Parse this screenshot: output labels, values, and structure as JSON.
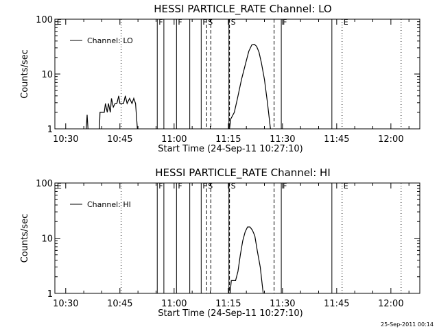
{
  "footer": {
    "stamp": "25-Sep-2011 00:14"
  },
  "chart_data": [
    {
      "type": "line",
      "title": "HESSI PARTICLE_RATE Channel: LO",
      "xlabel": "Start Time (24-Sep-11 10:27:10)",
      "ylabel": "Counts/sec",
      "yscale": "log",
      "ylim": [
        1,
        100
      ],
      "xlim": [
        "10:27",
        "12:08"
      ],
      "x_ticks": [
        "10:30",
        "10:45",
        "11:00",
        "11:15",
        "11:30",
        "11:45",
        "12:00"
      ],
      "y_ticks": [
        "1",
        "10",
        "100"
      ],
      "legend": {
        "label": "Channel: LO",
        "placement": "top-left"
      },
      "series": [
        {
          "name": "Channel: LO",
          "segments": [
            [
              [
                "10:35:40",
                1.0
              ],
              [
                "10:35:55",
                1.8
              ],
              [
                "10:36:10",
                1.0
              ]
            ],
            [
              [
                "10:39:20",
                1.0
              ],
              [
                "10:39:30",
                2.0
              ],
              [
                "10:40:40",
                2.0
              ],
              [
                "10:41:00",
                2.9
              ],
              [
                "10:41:30",
                2.0
              ],
              [
                "10:41:50",
                2.9
              ],
              [
                "10:42:20",
                2.0
              ],
              [
                "10:42:40",
                3.6
              ],
              [
                "10:43:10",
                2.5
              ],
              [
                "10:43:40",
                2.9
              ],
              [
                "10:44:10",
                2.9
              ],
              [
                "10:44:40",
                4.0
              ],
              [
                "10:45:00",
                2.9
              ],
              [
                "10:46:00",
                2.9
              ],
              [
                "10:46:30",
                4.0
              ],
              [
                "10:47:00",
                2.9
              ],
              [
                "10:47:40",
                3.6
              ],
              [
                "10:48:20",
                2.9
              ],
              [
                "10:48:50",
                3.6
              ],
              [
                "10:49:20",
                2.9
              ],
              [
                "10:49:50",
                1.0
              ]
            ],
            [
              [
                "11:15:20",
                1.0
              ],
              [
                "11:15:40",
                1.5
              ],
              [
                "11:16:40",
                2.0
              ],
              [
                "11:17:30",
                3.5
              ],
              [
                "11:18:40",
                8
              ],
              [
                "11:19:50",
                16
              ],
              [
                "11:20:40",
                26
              ],
              [
                "11:21:30",
                34
              ],
              [
                "11:22:10",
                35
              ],
              [
                "11:22:50",
                32
              ],
              [
                "11:23:30",
                25
              ],
              [
                "11:24:10",
                16
              ],
              [
                "11:25:00",
                8
              ],
              [
                "11:25:50",
                3
              ],
              [
                "11:26:40",
                1.0
              ]
            ]
          ]
        }
      ],
      "flags": [
        {
          "label": "E",
          "time": "10:27:10",
          "line": "none"
        },
        {
          "label": "F",
          "time": "10:55:20",
          "line": "solid"
        },
        {
          "label": "",
          "time": "10:57:10",
          "line": "solid"
        },
        {
          "label": "F",
          "time": "11:00:40",
          "line": "solid"
        },
        {
          "label": "",
          "time": "11:04:20",
          "line": "solid"
        },
        {
          "label": "F",
          "time": "11:07:30",
          "line": "solid"
        },
        {
          "label": "S",
          "time": "11:09:00",
          "line": "dashed"
        },
        {
          "label": "",
          "time": "11:10:10",
          "line": "dashed"
        },
        {
          "label": "",
          "time": "11:15:10",
          "line": "solid"
        },
        {
          "label": "S",
          "time": "11:15:20",
          "line": "dashed"
        },
        {
          "label": "",
          "time": "11:27:40",
          "line": "dashed"
        },
        {
          "label": "F",
          "time": "11:29:40",
          "line": "solid"
        },
        {
          "label": "",
          "time": "11:43:40",
          "line": "solid"
        },
        {
          "label": "E",
          "time": "11:46:30",
          "line": "dotted"
        },
        {
          "label": "",
          "time": "10:45:20",
          "line": "dotted"
        },
        {
          "label": "",
          "time": "12:02:50",
          "line": "dotted"
        }
      ]
    },
    {
      "type": "line",
      "title": "HESSI PARTICLE_RATE Channel: HI",
      "xlabel": "Start Time (24-Sep-11 10:27:10)",
      "ylabel": "Counts/sec",
      "yscale": "log",
      "ylim": [
        1,
        100
      ],
      "xlim": [
        "10:27",
        "12:08"
      ],
      "x_ticks": [
        "10:30",
        "10:45",
        "11:00",
        "11:15",
        "11:30",
        "11:45",
        "12:00"
      ],
      "y_ticks": [
        "1",
        "10",
        "100"
      ],
      "legend": {
        "label": "Channel: HI",
        "placement": "top-left"
      },
      "series": [
        {
          "name": "Channel: HI",
          "segments": [
            [
              [
                "11:15:30",
                1.0
              ],
              [
                "11:15:50",
                1.7
              ],
              [
                "11:17:00",
                1.7
              ],
              [
                "11:17:40",
                2.5
              ],
              [
                "11:18:20",
                5
              ],
              [
                "11:19:00",
                9
              ],
              [
                "11:19:40",
                13
              ],
              [
                "11:20:20",
                16
              ],
              [
                "11:21:00",
                16
              ],
              [
                "11:21:40",
                14
              ],
              [
                "11:22:20",
                11
              ],
              [
                "11:23:00",
                6
              ],
              [
                "11:23:50",
                3
              ],
              [
                "11:24:40",
                1.0
              ]
            ]
          ]
        }
      ],
      "flags": [
        {
          "label": "E",
          "time": "10:27:10",
          "line": "none"
        },
        {
          "label": "F",
          "time": "10:55:20",
          "line": "solid"
        },
        {
          "label": "",
          "time": "10:57:10",
          "line": "solid"
        },
        {
          "label": "F",
          "time": "11:00:40",
          "line": "solid"
        },
        {
          "label": "",
          "time": "11:04:20",
          "line": "solid"
        },
        {
          "label": "F",
          "time": "11:07:30",
          "line": "solid"
        },
        {
          "label": "S",
          "time": "11:09:00",
          "line": "dashed"
        },
        {
          "label": "",
          "time": "11:10:10",
          "line": "dashed"
        },
        {
          "label": "",
          "time": "11:15:10",
          "line": "solid"
        },
        {
          "label": "S",
          "time": "11:15:20",
          "line": "dashed"
        },
        {
          "label": "",
          "time": "11:27:40",
          "line": "dashed"
        },
        {
          "label": "F",
          "time": "11:29:40",
          "line": "solid"
        },
        {
          "label": "",
          "time": "11:43:40",
          "line": "solid"
        },
        {
          "label": "E",
          "time": "11:46:30",
          "line": "dotted"
        },
        {
          "label": "",
          "time": "10:45:20",
          "line": "dotted"
        },
        {
          "label": "",
          "time": "12:02:50",
          "line": "dotted"
        }
      ]
    }
  ]
}
